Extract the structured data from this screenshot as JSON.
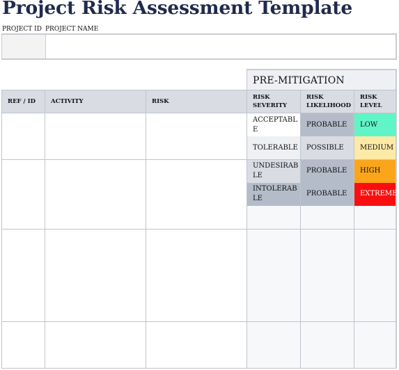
{
  "title": "Project Risk Assessment Template",
  "project_id_label": "PROJECT ID",
  "project_name_label": "PROJECT NAME",
  "section_label": "PRE-MITIGATION",
  "headers": [
    "REF / ID",
    "ACTIVITY",
    "RISK",
    "RISK SEVERITY",
    "RISK LIKELIHOOD",
    "RISK LEVEL"
  ],
  "rows": [
    {
      "severity": "ACCEPTABLE",
      "likelihood": "PROBABLE",
      "level": "LOW"
    },
    {
      "severity": "TOLERABLE",
      "likelihood": "POSSIBLE",
      "level": "MEDIUM"
    },
    {
      "severity": "UNDESIRABLE",
      "likelihood": "PROBABLE",
      "level": "HIGH"
    },
    {
      "severity": "INTOLERABLE",
      "likelihood": "PROBABLE",
      "level": "EXTREME"
    }
  ],
  "colors": {
    "title": "#1f2a4d",
    "header_bg": "#d9dce3",
    "severity_acceptable": "#ffffff",
    "severity_tolerable": "#eef0f4",
    "severity_undesirable": "#d9dce3",
    "severity_intolerable": "#b4bcc9",
    "likelihood_probable": "#b4bcc9",
    "likelihood_possible": "#d9dce3",
    "level_low": "#5ff5c6",
    "level_medium": "#fdeaa6",
    "level_high": "#fba51b",
    "level_extreme": "#f90f0f"
  }
}
